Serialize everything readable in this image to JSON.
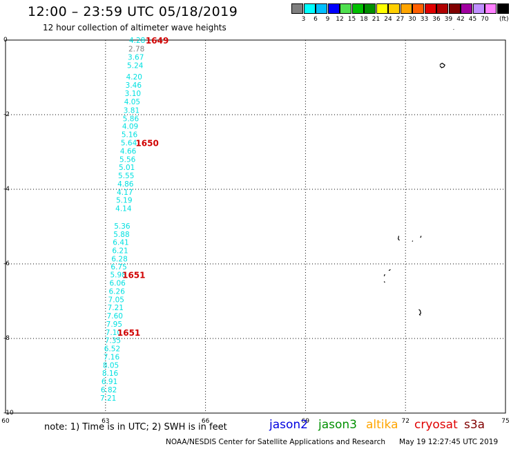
{
  "header": {
    "title": "12:00 – 23:59 UTC 05/18/2019",
    "subtitle": "12 hour collection of altimeter wave heights"
  },
  "color_scale": {
    "unit": "(ft)",
    "entries": [
      {
        "label": "",
        "color": "#7f7f7f"
      },
      {
        "label": "3",
        "color": "#00ffff"
      },
      {
        "label": "6",
        "color": "#00bfff"
      },
      {
        "label": "9",
        "color": "#0000ff"
      },
      {
        "label": "12",
        "color": "#4fe04f"
      },
      {
        "label": "15",
        "color": "#00c000"
      },
      {
        "label": "18",
        "color": "#009000"
      },
      {
        "label": "21",
        "color": "#ffff00"
      },
      {
        "label": "24",
        "color": "#ffd000"
      },
      {
        "label": "27",
        "color": "#ffa500"
      },
      {
        "label": "30",
        "color": "#ff6000"
      },
      {
        "label": "33",
        "color": "#e00000"
      },
      {
        "label": "36",
        "color": "#b00000"
      },
      {
        "label": "39",
        "color": "#800000"
      },
      {
        "label": "42",
        "color": "#a000a0"
      },
      {
        "label": "45",
        "color": "#c090ff"
      },
      {
        "label": "70",
        "color": "#ff80ff"
      },
      {
        "label": "",
        "color": "#000000"
      }
    ]
  },
  "map": {
    "lon_range": [
      60,
      75
    ],
    "lat_range": [
      -10,
      0
    ],
    "x_ticks": [
      "60",
      "63",
      "66",
      "69",
      "72",
      "75"
    ],
    "y_ticks": [
      "0",
      "-2",
      "-4",
      "-6",
      "-8",
      "-10"
    ],
    "grid_lons": [
      63,
      66,
      69,
      72
    ],
    "grid_lats": [
      -2,
      -4,
      -6,
      -8
    ]
  },
  "wave_readings": [
    {
      "value": "4.28",
      "lon": 63.95,
      "lat": 0.0,
      "color": "#00e0e0"
    },
    {
      "value": "2.78",
      "lon": 63.93,
      "lat": -0.23,
      "color": "#808080"
    },
    {
      "value": "3.67",
      "lon": 63.91,
      "lat": -0.45,
      "color": "#00e0e0"
    },
    {
      "value": "5.24",
      "lon": 63.89,
      "lat": -0.68,
      "color": "#00e0e0"
    },
    {
      "value": "4.20",
      "lon": 63.86,
      "lat": -0.98,
      "color": "#00e0e0"
    },
    {
      "value": "3.46",
      "lon": 63.84,
      "lat": -1.2,
      "color": "#00e0e0"
    },
    {
      "value": "3.10",
      "lon": 63.82,
      "lat": -1.43,
      "color": "#00e0e0"
    },
    {
      "value": "4.05",
      "lon": 63.8,
      "lat": -1.65,
      "color": "#00e0e0"
    },
    {
      "value": "3.81",
      "lon": 63.78,
      "lat": -1.88,
      "color": "#00e0e0"
    },
    {
      "value": "5.86",
      "lon": 63.76,
      "lat": -2.1,
      "color": "#00e0e0"
    },
    {
      "value": "4.09",
      "lon": 63.74,
      "lat": -2.31,
      "color": "#00e0e0"
    },
    {
      "value": "5.16",
      "lon": 63.72,
      "lat": -2.53,
      "color": "#00e0e0"
    },
    {
      "value": "5.64",
      "lon": 63.7,
      "lat": -2.75,
      "color": "#00e0e0"
    },
    {
      "value": "4.66",
      "lon": 63.68,
      "lat": -2.97,
      "color": "#00e0e0"
    },
    {
      "value": "5.56",
      "lon": 63.66,
      "lat": -3.19,
      "color": "#00e0e0"
    },
    {
      "value": "5.01",
      "lon": 63.64,
      "lat": -3.41,
      "color": "#00e0e0"
    },
    {
      "value": "5.55",
      "lon": 63.62,
      "lat": -3.63,
      "color": "#00e0e0"
    },
    {
      "value": "4.86",
      "lon": 63.6,
      "lat": -3.85,
      "color": "#00e0e0"
    },
    {
      "value": "4.17",
      "lon": 63.58,
      "lat": -4.07,
      "color": "#00e0e0"
    },
    {
      "value": "5.19",
      "lon": 63.56,
      "lat": -4.29,
      "color": "#00e0e0"
    },
    {
      "value": "4.14",
      "lon": 63.54,
      "lat": -4.51,
      "color": "#00e0e0"
    },
    {
      "value": "5.36",
      "lon": 63.5,
      "lat": -4.98,
      "color": "#00e0e0"
    },
    {
      "value": "5.88",
      "lon": 63.48,
      "lat": -5.2,
      "color": "#00e0e0"
    },
    {
      "value": "6.41",
      "lon": 63.46,
      "lat": -5.42,
      "color": "#00e0e0"
    },
    {
      "value": "6.21",
      "lon": 63.44,
      "lat": -5.64,
      "color": "#00e0e0"
    },
    {
      "value": "6.28",
      "lon": 63.42,
      "lat": -5.86,
      "color": "#00e0e0"
    },
    {
      "value": "6.75",
      "lon": 63.4,
      "lat": -6.07,
      "color": "#00e0e0"
    },
    {
      "value": "5.98",
      "lon": 63.38,
      "lat": -6.29,
      "color": "#00e0e0"
    },
    {
      "value": "6.06",
      "lon": 63.36,
      "lat": -6.51,
      "color": "#00e0e0"
    },
    {
      "value": "6.26",
      "lon": 63.34,
      "lat": -6.73,
      "color": "#00e0e0"
    },
    {
      "value": "7.05",
      "lon": 63.32,
      "lat": -6.95,
      "color": "#00e0e0"
    },
    {
      "value": "7.21",
      "lon": 63.3,
      "lat": -7.17,
      "color": "#00e0e0"
    },
    {
      "value": "7.60",
      "lon": 63.28,
      "lat": -7.39,
      "color": "#00e0e0"
    },
    {
      "value": "7.95",
      "lon": 63.26,
      "lat": -7.61,
      "color": "#00e0e0"
    },
    {
      "value": "7.10",
      "lon": 63.24,
      "lat": -7.83,
      "color": "#00e0e0"
    },
    {
      "value": "7.35",
      "lon": 63.22,
      "lat": -8.05,
      "color": "#00e0e0"
    },
    {
      "value": "6.52",
      "lon": 63.2,
      "lat": -8.27,
      "color": "#00e0e0"
    },
    {
      "value": "7.16",
      "lon": 63.18,
      "lat": -8.49,
      "color": "#00e0e0"
    },
    {
      "value": "8.05",
      "lon": 63.16,
      "lat": -8.71,
      "color": "#00e0e0"
    },
    {
      "value": "8.16",
      "lon": 63.14,
      "lat": -8.93,
      "color": "#00e0e0"
    },
    {
      "value": "6.91",
      "lon": 63.12,
      "lat": -9.15,
      "color": "#00e0e0"
    },
    {
      "value": "6.82",
      "lon": 63.1,
      "lat": -9.37,
      "color": "#00e0e0"
    },
    {
      "value": "7.21",
      "lon": 63.08,
      "lat": -9.59,
      "color": "#00e0e0"
    }
  ],
  "time_labels": [
    {
      "text": "1649",
      "lon": 64.55,
      "lat": 0.0
    },
    {
      "text": "1650",
      "lon": 64.25,
      "lat": -2.75
    },
    {
      "text": "1651",
      "lon": 63.85,
      "lat": -6.29
    },
    {
      "text": "1651",
      "lon": 63.7,
      "lat": -7.83
    }
  ],
  "islands": [
    {
      "name": "island",
      "points": [
        [
          73.45,
          0.28
        ],
        [
          73.44,
          0.29
        ]
      ]
    },
    {
      "name": "island",
      "points": [
        [
          73.03,
          -0.66
        ],
        [
          73.1,
          -0.62
        ],
        [
          73.18,
          -0.67
        ],
        [
          73.15,
          -0.72
        ],
        [
          73.08,
          -0.74
        ],
        [
          73.03,
          -0.68
        ]
      ]
    },
    {
      "name": "island",
      "points": [
        [
          71.8,
          -5.25
        ],
        [
          71.78,
          -5.33
        ],
        [
          71.82,
          -5.37
        ]
      ]
    },
    {
      "name": "island",
      "points": [
        [
          72.45,
          -5.3
        ],
        [
          72.47,
          -5.25
        ]
      ]
    },
    {
      "name": "island",
      "points": [
        [
          72.2,
          -5.4
        ],
        [
          72.22,
          -5.38
        ]
      ]
    },
    {
      "name": "island",
      "points": [
        [
          71.5,
          -6.18
        ],
        [
          71.55,
          -6.15
        ]
      ]
    },
    {
      "name": "island",
      "points": [
        [
          71.38,
          -6.28
        ],
        [
          71.36,
          -6.33
        ]
      ]
    },
    {
      "name": "island",
      "points": [
        [
          71.36,
          -6.47
        ],
        [
          71.38,
          -6.5
        ]
      ]
    },
    {
      "name": "island",
      "points": [
        [
          72.4,
          -7.22
        ],
        [
          72.44,
          -7.25
        ],
        [
          72.46,
          -7.32
        ],
        [
          72.42,
          -7.36
        ],
        [
          72.45,
          -7.38
        ]
      ]
    }
  ],
  "footer": {
    "note": "note: 1) Time is in UTC; 2) SWH is in feet",
    "satellites": [
      {
        "name": "jason2",
        "color": "#0000e0"
      },
      {
        "name": "jason3",
        "color": "#009000"
      },
      {
        "name": "altika",
        "color": "#ffa500"
      },
      {
        "name": "cryosat",
        "color": "#e00000"
      },
      {
        "name": "s3a",
        "color": "#800000"
      }
    ],
    "credit": "NOAA/NESDIS Center for Satellite Applications and Research",
    "timestamp": "May 19 12:27:45 UTC 2019"
  }
}
